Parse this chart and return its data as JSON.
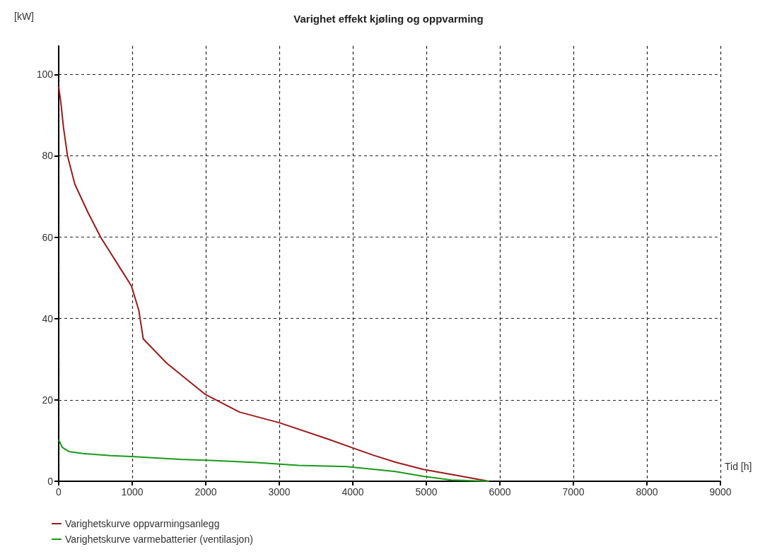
{
  "chart_data": {
    "type": "line",
    "title": "Varighet effekt kjøling og oppvarming",
    "xlabel": "Tid [h]",
    "ylabel": "[kW]",
    "xlim": [
      0,
      9000
    ],
    "xticks": [
      0,
      1000,
      2000,
      3000,
      4000,
      5000,
      6000,
      7000,
      8000,
      9000
    ],
    "ylim": [
      0,
      107
    ],
    "yticks": [
      0,
      20,
      40,
      60,
      80,
      100
    ],
    "grid": true,
    "legend": "bottom left",
    "marker": "none",
    "line_style": "solid",
    "series": [
      {
        "name": "Varighetskurve oppvarmingsanlegg",
        "color": "#9b1a1a",
        "x": [
          0,
          30,
          65,
          120,
          220,
          400,
          570,
          850,
          990,
          1090,
          1150,
          1470,
          1990,
          2460,
          3000,
          3640,
          4280,
          4580,
          4960,
          5430,
          5850
        ],
        "values": [
          97,
          93,
          87,
          80,
          73,
          66,
          60,
          52,
          48,
          42,
          35,
          29,
          21.4,
          17,
          14.4,
          10.5,
          6.4,
          4.7,
          2.9,
          1.4,
          0
        ]
      },
      {
        "name": "Varighetskurve varmebatterier (ventilasjon)",
        "color": "#1a9a1a",
        "x": [
          0,
          50,
          140,
          330,
          710,
          990,
          1650,
          2130,
          2690,
          3260,
          3920,
          4300,
          4580,
          4960,
          5340,
          5850
        ],
        "values": [
          10.2,
          8.3,
          7.3,
          6.8,
          6.3,
          6.1,
          5.4,
          5.1,
          4.6,
          3.9,
          3.6,
          2.9,
          2.4,
          1.2,
          0.3,
          0
        ]
      }
    ]
  }
}
